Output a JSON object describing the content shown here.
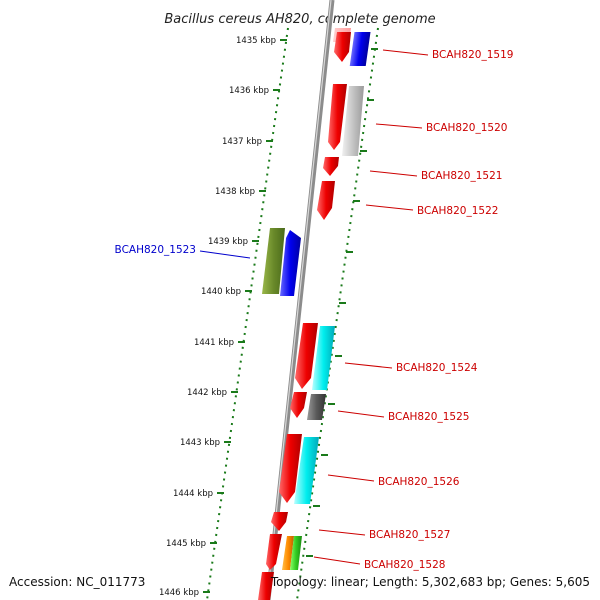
{
  "title": "Bacillus cereus AH820, complete genome",
  "footer": {
    "accession": "Accession: NC_011773",
    "stats": "Topology: linear; Length: 5,302,683 bp; Genes: 5,605"
  },
  "colors": {
    "backbone": "#8c8c8c",
    "ticks": "#1a7a1a",
    "forward_label": "#cc0000",
    "reverse_label": "#0000cc"
  },
  "ticks_kbp": [
    "1435 kbp",
    "1436 kbp",
    "1437 kbp",
    "1438 kbp",
    "1439 kbp",
    "1440 kbp",
    "1441 kbp",
    "1442 kbp",
    "1443 kbp",
    "1444 kbp",
    "1445 kbp",
    "1446 kbp"
  ],
  "gene_labels": [
    {
      "text": "BCAH820_1519",
      "strand": "+"
    },
    {
      "text": "BCAH820_1520",
      "strand": "+"
    },
    {
      "text": "BCAH820_1521",
      "strand": "+"
    },
    {
      "text": "BCAH820_1522",
      "strand": "+"
    },
    {
      "text": "BCAH820_1523",
      "strand": "-"
    },
    {
      "text": "BCAH820_1524",
      "strand": "+"
    },
    {
      "text": "BCAH820_1525",
      "strand": "+"
    },
    {
      "text": "BCAH820_1526",
      "strand": "+"
    },
    {
      "text": "BCAH820_1527",
      "strand": "+"
    },
    {
      "text": "BCAH820_1528",
      "strand": "+"
    }
  ]
}
